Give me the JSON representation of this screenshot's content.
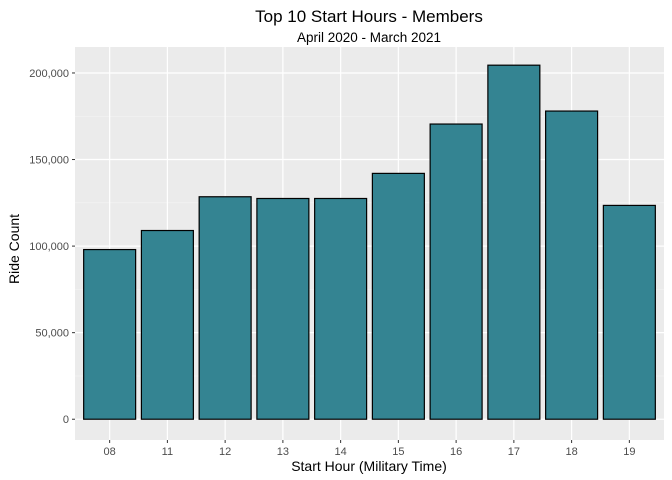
{
  "chart_data": {
    "type": "bar",
    "title": "Top 10 Start Hours - Members",
    "subtitle": "April 2020 - March 2021",
    "xlabel": "Start Hour (Military Time)",
    "ylabel": "Ride Count",
    "categories": [
      "08",
      "11",
      "12",
      "13",
      "14",
      "15",
      "16",
      "17",
      "18",
      "19"
    ],
    "values": [
      98000,
      109000,
      128500,
      127500,
      127500,
      142000,
      170500,
      204500,
      178000,
      123500
    ],
    "ylim": [
      -12000,
      215000
    ],
    "yticks": [
      0,
      50000,
      100000,
      150000,
      200000
    ],
    "ytick_labels": [
      "0",
      "50,000",
      "100,000",
      "150,000",
      "200,000"
    ],
    "grid": true,
    "legend": "none"
  },
  "colors": {
    "bar_fill": "#348492",
    "bar_stroke": "#000000",
    "panel_background": "#ebebeb",
    "grid_major": "#ffffff",
    "grid_minor": "#f5f5f5"
  }
}
